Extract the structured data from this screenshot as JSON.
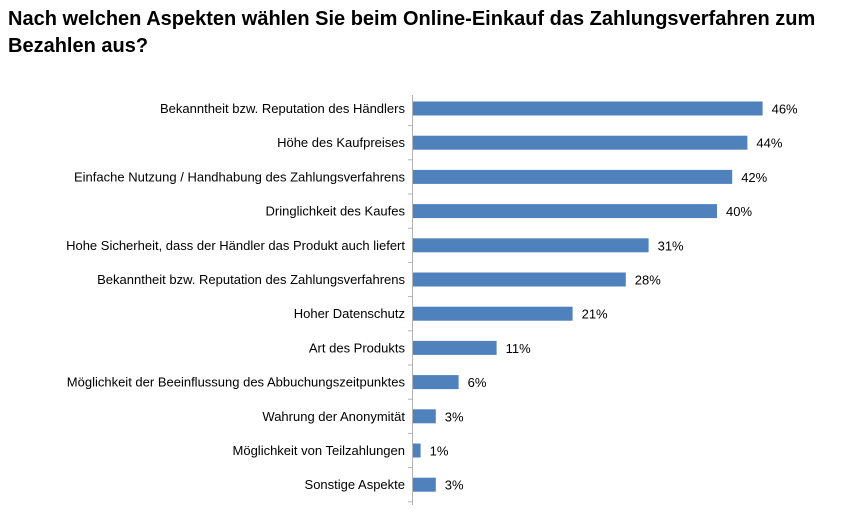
{
  "chart_data": {
    "type": "bar",
    "orientation": "horizontal",
    "title": "Nach welchen Aspekten wählen Sie beim Online-Einkauf das Zahlungsverfahren zum Bezahlen aus?",
    "categories": [
      "Bekanntheit bzw. Reputation des Händlers",
      "Höhe des Kaufpreises",
      "Einfache Nutzung / Handhabung des Zahlungsverfahrens",
      "Dringlichkeit des Kaufes",
      "Hohe Sicherheit, dass der Händler das Produkt auch liefert",
      "Bekanntheit bzw. Reputation des Zahlungsverfahrens",
      "Hoher Datenschutz",
      "Art des Produkts",
      "Möglichkeit der Beeinflussung des Abbuchungszeitpunktes",
      "Wahrung der Anonymität",
      "Möglichkeit von Teilzahlungen",
      "Sonstige Aspekte"
    ],
    "values": [
      46,
      44,
      42,
      40,
      31,
      28,
      21,
      11,
      6,
      3,
      1,
      3
    ],
    "value_labels": [
      "46%",
      "44%",
      "42%",
      "40%",
      "31%",
      "28%",
      "21%",
      "11%",
      "6%",
      "3%",
      "1%",
      "3%"
    ],
    "unit": "%",
    "bar_color": "#4f81bd",
    "grid": false,
    "legend": "none"
  }
}
